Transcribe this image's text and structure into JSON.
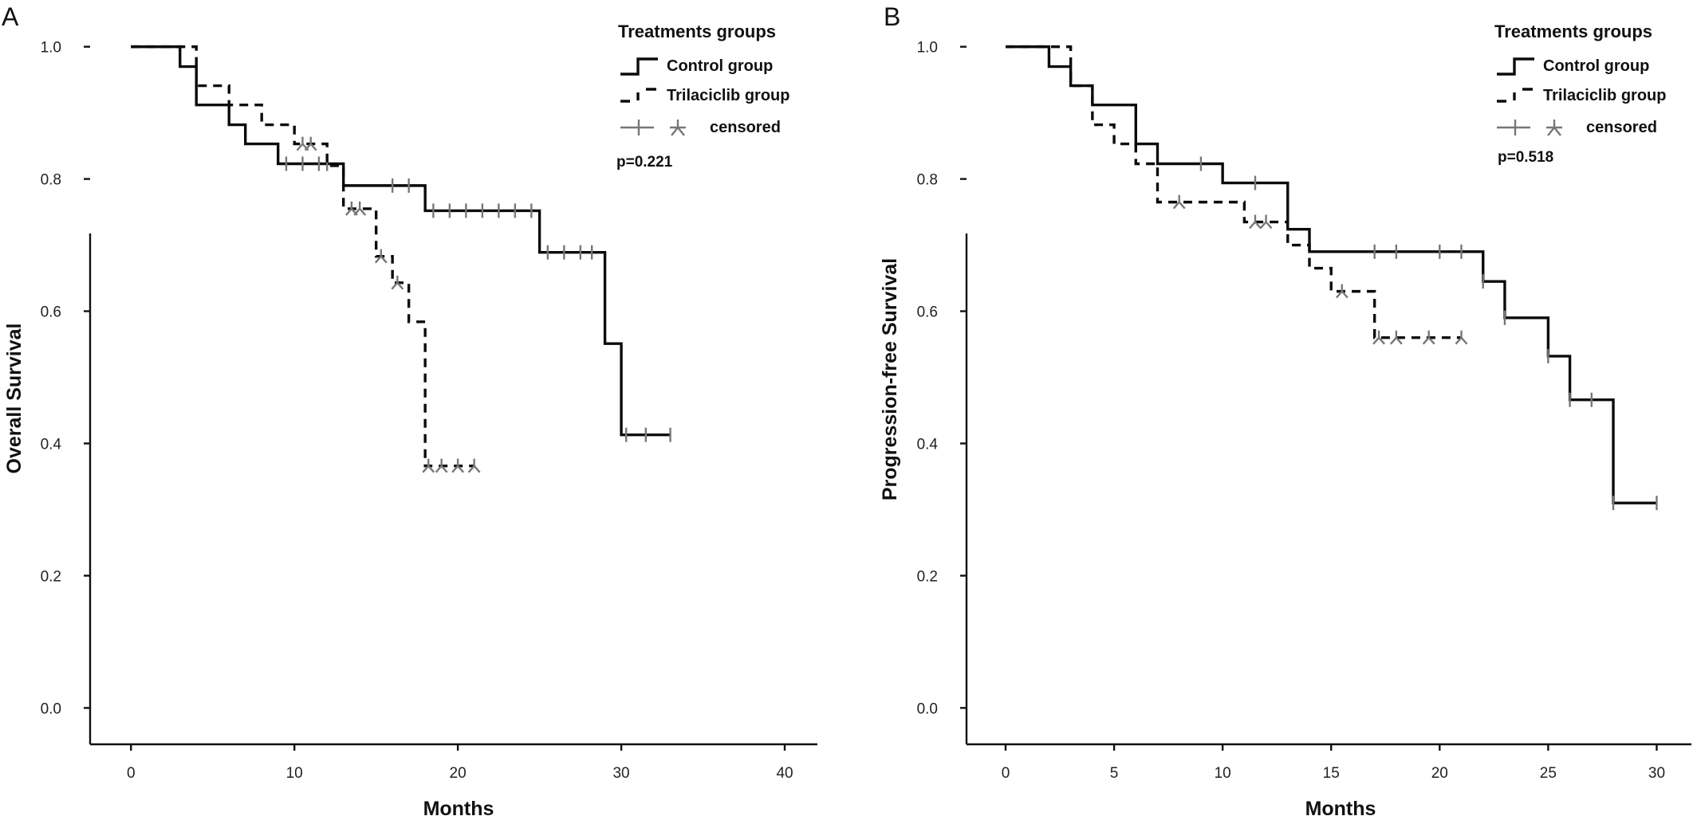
{
  "chart_data": [
    {
      "type": "line",
      "panel_label": "A",
      "xlabel": "Months",
      "ylabel": "Overall Survival",
      "xlim": [
        -2.5,
        42
      ],
      "ylim": [
        -0.055,
        1.055
      ],
      "xticks": [
        0,
        10,
        20,
        30,
        40
      ],
      "yticks": [
        0.0,
        0.2,
        0.4,
        0.6,
        0.8,
        1.0
      ],
      "xtick_labels": [
        "0",
        "10",
        "20",
        "30",
        "40"
      ],
      "ytick_labels": [
        "0.0",
        "0.2",
        "0.4",
        "0.6",
        "0.8",
        "1.0"
      ],
      "grid": false,
      "legend": {
        "title": "Treatments groups",
        "entries": [
          "Control group",
          "Trilaciclib group",
          "censored"
        ],
        "placement": "top-right",
        "p_value": "p=0.221"
      },
      "series": [
        {
          "name": "Control group",
          "style": "solid",
          "steps": [
            [
              0,
              1.0
            ],
            [
              3,
              0.97
            ],
            [
              4,
              0.912
            ],
            [
              6,
              0.882
            ],
            [
              7,
              0.853
            ],
            [
              9,
              0.823
            ],
            [
              13,
              0.79
            ],
            [
              18,
              0.752
            ],
            [
              25,
              0.689
            ],
            [
              29,
              0.551
            ],
            [
              30,
              0.413
            ],
            [
              33,
              0.413
            ]
          ],
          "censored": [
            [
              9.5,
              0.823
            ],
            [
              10.5,
              0.823
            ],
            [
              11.5,
              0.823
            ],
            [
              12,
              0.823
            ],
            [
              16,
              0.79
            ],
            [
              17,
              0.79
            ],
            [
              18.5,
              0.752
            ],
            [
              19.5,
              0.752
            ],
            [
              20.5,
              0.752
            ],
            [
              21.5,
              0.752
            ],
            [
              22.5,
              0.752
            ],
            [
              23.5,
              0.752
            ],
            [
              24.5,
              0.752
            ],
            [
              25.5,
              0.689
            ],
            [
              26.5,
              0.689
            ],
            [
              27.5,
              0.689
            ],
            [
              28.2,
              0.689
            ],
            [
              30.3,
              0.413
            ],
            [
              31.5,
              0.413
            ],
            [
              33,
              0.413
            ]
          ]
        },
        {
          "name": "Trilaciclib group",
          "style": "dashed",
          "steps": [
            [
              0,
              1.0
            ],
            [
              4,
              0.941
            ],
            [
              6,
              0.912
            ],
            [
              8,
              0.882
            ],
            [
              10,
              0.853
            ],
            [
              12,
              0.82
            ],
            [
              13,
              0.755
            ],
            [
              15,
              0.683
            ],
            [
              16,
              0.643
            ],
            [
              17,
              0.584
            ],
            [
              18,
              0.366
            ],
            [
              21,
              0.366
            ]
          ],
          "censored": [
            [
              10.5,
              0.853
            ],
            [
              11,
              0.853
            ],
            [
              13.5,
              0.755
            ],
            [
              14,
              0.755
            ],
            [
              15.3,
              0.683
            ],
            [
              16.3,
              0.643
            ],
            [
              18.2,
              0.366
            ],
            [
              19,
              0.366
            ],
            [
              20,
              0.366
            ],
            [
              21,
              0.366
            ]
          ]
        }
      ]
    },
    {
      "type": "line",
      "panel_label": "B",
      "xlabel": "Months",
      "ylabel": "Progression-free Survival",
      "xlim": [
        -1.8,
        31.6
      ],
      "ylim": [
        -0.055,
        1.055
      ],
      "xticks": [
        0,
        5,
        10,
        15,
        20,
        25,
        30
      ],
      "yticks": [
        0.0,
        0.2,
        0.4,
        0.6,
        0.8,
        1.0
      ],
      "xtick_labels": [
        "0",
        "5",
        "10",
        "15",
        "20",
        "25",
        "30"
      ],
      "ytick_labels": [
        "0.0",
        "0.2",
        "0.4",
        "0.6",
        "0.8",
        "1.0"
      ],
      "grid": false,
      "legend": {
        "title": "Treatments groups",
        "entries": [
          "Control group",
          "Trilaciclib group",
          "censored"
        ],
        "placement": "top-right",
        "p_value": "p=0.518"
      },
      "series": [
        {
          "name": "Control group",
          "style": "solid",
          "steps": [
            [
              0,
              1.0
            ],
            [
              2,
              0.97
            ],
            [
              3,
              0.941
            ],
            [
              4,
              0.912
            ],
            [
              6,
              0.853
            ],
            [
              7,
              0.823
            ],
            [
              10,
              0.794
            ],
            [
              13,
              0.724
            ],
            [
              14,
              0.69
            ],
            [
              22,
              0.645
            ],
            [
              23,
              0.59
            ],
            [
              25,
              0.532
            ],
            [
              26,
              0.466
            ],
            [
              28,
              0.31
            ],
            [
              30,
              0.31
            ]
          ],
          "censored": [
            [
              9,
              0.823
            ],
            [
              11.5,
              0.794
            ],
            [
              17,
              0.69
            ],
            [
              18,
              0.69
            ],
            [
              20,
              0.69
            ],
            [
              21,
              0.69
            ],
            [
              22,
              0.645
            ],
            [
              23,
              0.59
            ],
            [
              25,
              0.532
            ],
            [
              26,
              0.466
            ],
            [
              27,
              0.466
            ],
            [
              28,
              0.31
            ],
            [
              30,
              0.31
            ]
          ]
        },
        {
          "name": "Trilaciclib group",
          "style": "dashed",
          "steps": [
            [
              0,
              1.0
            ],
            [
              3,
              0.941
            ],
            [
              4,
              0.882
            ],
            [
              5,
              0.853
            ],
            [
              6,
              0.823
            ],
            [
              7,
              0.765
            ],
            [
              11,
              0.735
            ],
            [
              13,
              0.7
            ],
            [
              14,
              0.665
            ],
            [
              15,
              0.63
            ],
            [
              17,
              0.56
            ],
            [
              21,
              0.56
            ]
          ],
          "censored": [
            [
              8,
              0.765
            ],
            [
              11.5,
              0.735
            ],
            [
              12,
              0.735
            ],
            [
              15.5,
              0.63
            ],
            [
              17.2,
              0.56
            ],
            [
              18,
              0.56
            ],
            [
              19.5,
              0.56
            ],
            [
              21,
              0.56
            ]
          ]
        }
      ]
    }
  ]
}
